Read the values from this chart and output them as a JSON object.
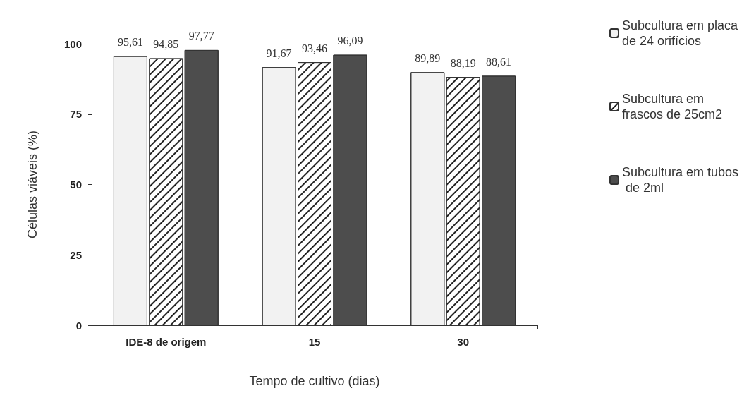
{
  "chart_data": {
    "type": "bar",
    "xlabel": "Tempo de cultivo (dias)",
    "ylabel": "Células viáveis (%)",
    "categories": [
      "IDE-8 de origem",
      "15",
      "30"
    ],
    "series": [
      {
        "name": "Subcultura em placa de 24 orifícios",
        "color": "#f2f2f2",
        "values": [
          95.61,
          91.67,
          89.89
        ],
        "value_labels": [
          "95,61",
          "91,67",
          "89,89"
        ]
      },
      {
        "name": "Subcultura em frascos de 25cm2",
        "color": "#ffffff",
        "values": [
          94.85,
          93.46,
          88.19
        ],
        "value_labels": [
          "94,85",
          "93,46",
          "88,19"
        ]
      },
      {
        "name": "Subcultura em tubos de 2ml",
        "color": "#4d4d4d",
        "values": [
          97.77,
          96.09,
          88.61
        ],
        "value_labels": [
          "97,77",
          "96,09",
          "88,61"
        ]
      }
    ],
    "ylim": [
      0,
      100
    ],
    "yticks": [
      0,
      25,
      50,
      75,
      100
    ],
    "grid": false,
    "legend": "right"
  }
}
